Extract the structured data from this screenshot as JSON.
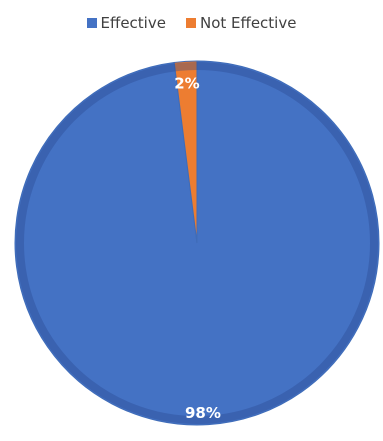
{
  "chart_data": {
    "type": "pie",
    "title": "",
    "categories": [
      "Effective",
      "Not Effective"
    ],
    "values": [
      98,
      2
    ],
    "labels": [
      "98%",
      "2%"
    ],
    "colors": [
      "#4472C4",
      "#ED7D31"
    ],
    "legend_position": "top"
  }
}
